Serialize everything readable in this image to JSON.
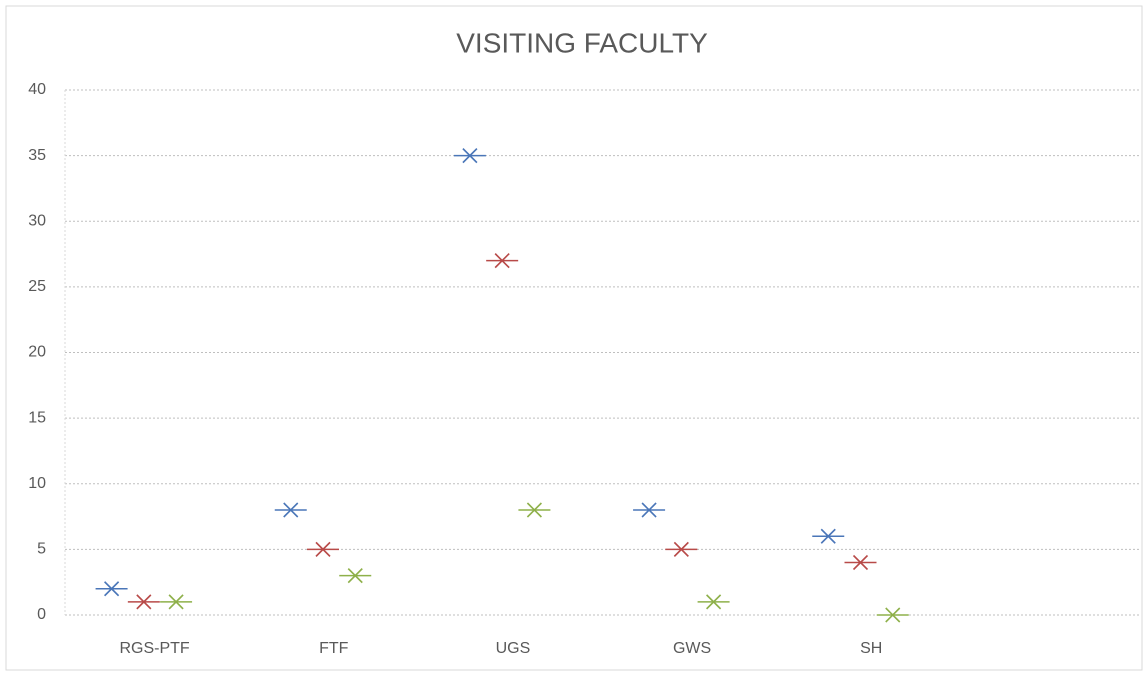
{
  "chart_data": {
    "type": "scatter",
    "title": "VISITING FACULTY",
    "categories": [
      "RGS-PTF",
      "FTF",
      "UGS",
      "GWS",
      "SH",
      null
    ],
    "series": [
      {
        "color": "#4a76b8",
        "values": [
          2,
          8,
          35,
          8,
          6,
          null
        ]
      },
      {
        "color": "#b84a48",
        "values": [
          1,
          5,
          27,
          5,
          4,
          null
        ]
      },
      {
        "color": "#8eb04a",
        "values": [
          1,
          3,
          8,
          1,
          0,
          null
        ]
      }
    ],
    "ylim": [
      0,
      40
    ],
    "yticks": [
      0,
      5,
      10,
      15,
      20,
      25,
      30,
      35,
      40
    ],
    "grid": true
  }
}
